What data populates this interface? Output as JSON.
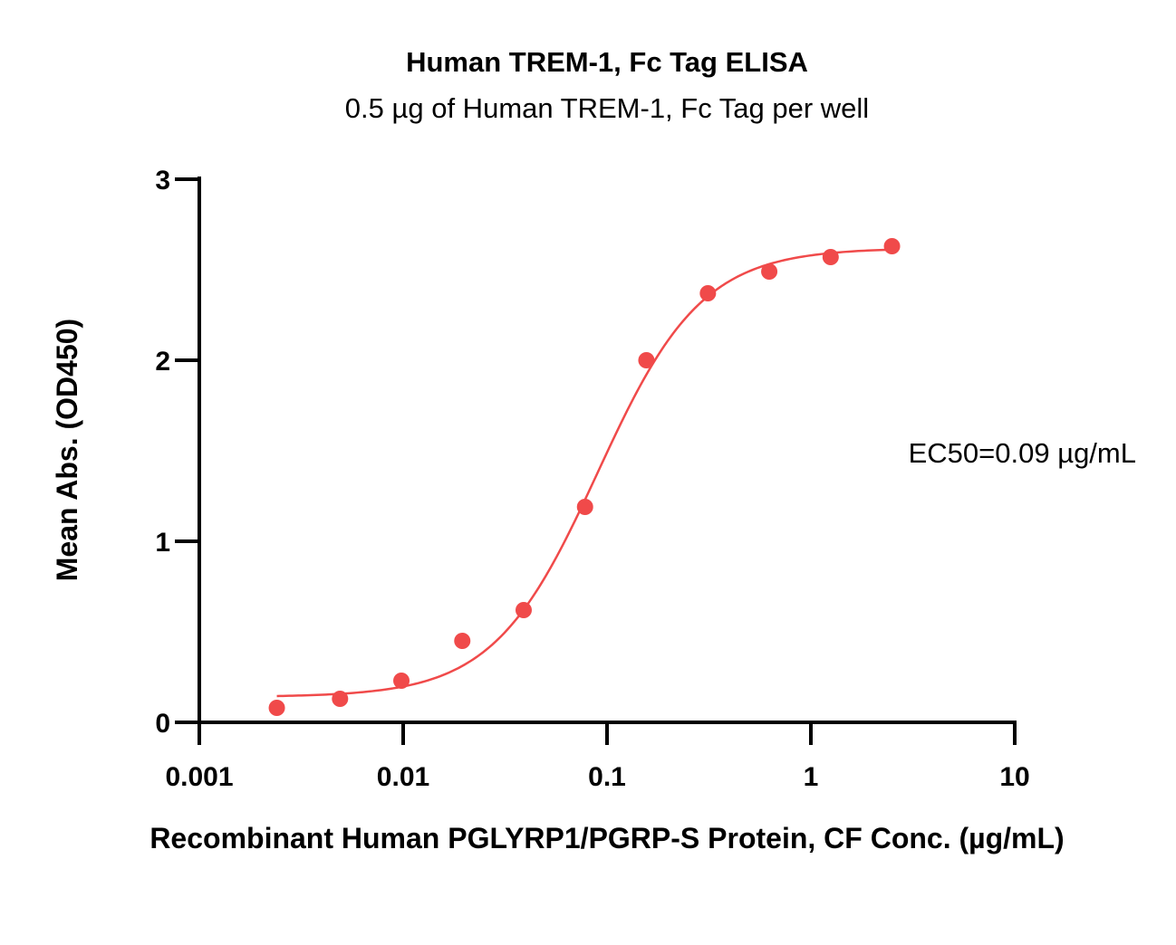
{
  "chart_data": {
    "type": "scatter",
    "title": "Human TREM-1, Fc Tag ELISA",
    "subtitle": "0.5 µg of Human TREM-1, Fc Tag per well",
    "xlabel": "Recombinant Human PGLYRP1/PGRP-S Protein, CF Conc. (µg/mL)",
    "ylabel": "Mean Abs. (OD450)",
    "x_scale": "log",
    "xlim": [
      0.001,
      10
    ],
    "ylim": [
      0,
      3
    ],
    "x_ticks": [
      0.001,
      0.01,
      0.1,
      1,
      10
    ],
    "x_tick_labels": [
      "0.001",
      "0.01",
      "0.1",
      "1",
      "10"
    ],
    "y_ticks": [
      0,
      1,
      2,
      3
    ],
    "y_tick_labels": [
      "0",
      "1",
      "2",
      "3"
    ],
    "grid": false,
    "annotation": "EC50=0.09 µg/mL",
    "color": "#f04a4a",
    "series": [
      {
        "x": [
          0.0024,
          0.0049,
          0.0098,
          0.0195,
          0.039,
          0.078,
          0.156,
          0.3125,
          0.625,
          1.25,
          2.5
        ],
        "y": [
          0.08,
          0.13,
          0.23,
          0.45,
          0.62,
          1.19,
          2.0,
          2.37,
          2.49,
          2.57,
          2.63
        ]
      }
    ],
    "fit": {
      "model": "4PL",
      "bottom": 0.14,
      "top": 2.62,
      "ec50": 0.09,
      "hill": 1.7,
      "x_range": [
        0.0024,
        2.5
      ]
    }
  }
}
